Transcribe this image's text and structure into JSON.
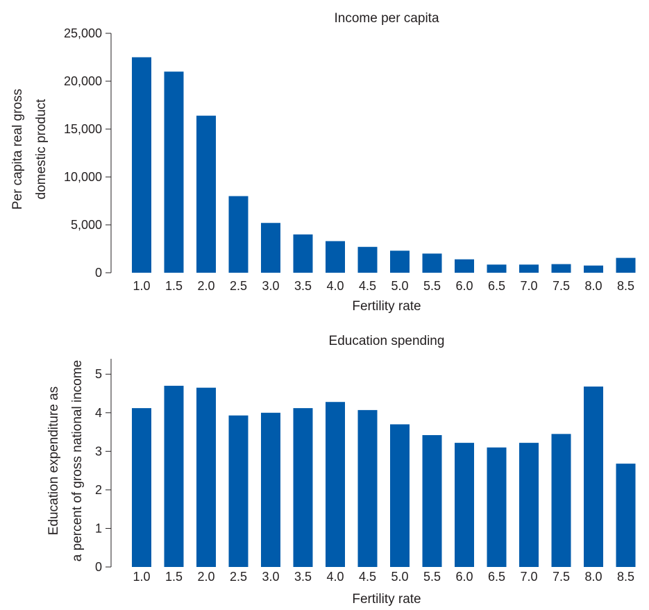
{
  "chart_data": [
    {
      "type": "bar",
      "title": "Income per capita",
      "xlabel": "Fertility rate",
      "ylabel_lines": [
        "Per capita real gross",
        "domestic product"
      ],
      "categories": [
        "1.0",
        "1.5",
        "2.0",
        "2.5",
        "3.0",
        "3.5",
        "4.0",
        "4.5",
        "5.0",
        "5.5",
        "6.0",
        "6.5",
        "7.0",
        "7.5",
        "8.0",
        "8.5"
      ],
      "values": [
        22500,
        21000,
        16400,
        8000,
        5200,
        4000,
        3300,
        2700,
        2300,
        2000,
        1400,
        850,
        850,
        900,
        750,
        1550
      ],
      "ylim": [
        0,
        25000
      ],
      "yticks": [
        0,
        5000,
        10000,
        15000,
        20000,
        25000
      ],
      "ytick_labels": [
        "0",
        "5,000",
        "10,000",
        "15,000",
        "20,000",
        "25,000"
      ],
      "bar_color": "#005bab"
    },
    {
      "type": "bar",
      "title": "Education spending",
      "xlabel": "Fertility rate",
      "ylabel_lines": [
        "Education expenditure as",
        "a percent of gross national income"
      ],
      "categories": [
        "1.0",
        "1.5",
        "2.0",
        "2.5",
        "3.0",
        "3.5",
        "4.0",
        "4.5",
        "5.0",
        "5.5",
        "6.0",
        "6.5",
        "7.0",
        "7.5",
        "8.0",
        "8.5"
      ],
      "values": [
        4.12,
        4.7,
        4.65,
        3.93,
        4.0,
        4.12,
        4.28,
        4.07,
        3.7,
        3.42,
        3.22,
        3.1,
        3.22,
        3.45,
        4.68,
        2.68
      ],
      "ylim": [
        0,
        5.4
      ],
      "yticks": [
        0,
        1,
        2,
        3,
        4,
        5
      ],
      "ytick_labels": [
        "0",
        "1",
        "2",
        "3",
        "4",
        "5"
      ],
      "bar_color": "#005bab"
    }
  ]
}
